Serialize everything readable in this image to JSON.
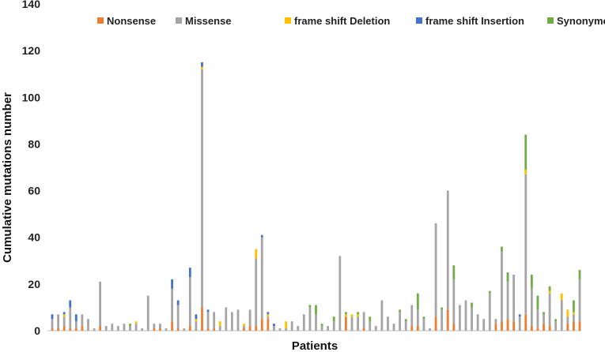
{
  "chart_data": {
    "type": "bar",
    "stacked": true,
    "title": "",
    "xlabel": "Patients",
    "ylabel": "Cumulative mutations number",
    "ylim": [
      0,
      140
    ],
    "yticks": [
      0,
      20,
      40,
      60,
      80,
      100,
      120,
      140
    ],
    "grid": false,
    "legend_position": "top",
    "series": [
      {
        "name": "Nonsense",
        "color": "#ED7D31",
        "values": [
          1,
          1,
          2,
          1,
          1,
          2,
          0,
          0,
          2,
          0,
          0,
          0,
          0,
          0,
          0,
          0,
          0,
          1,
          1,
          0,
          4,
          1,
          0,
          2,
          0,
          10,
          1,
          1,
          0,
          0,
          0,
          0,
          1,
          2,
          2,
          5,
          5,
          0,
          0,
          0,
          0,
          0,
          0,
          0,
          0,
          0,
          0,
          0,
          0,
          6,
          0,
          0,
          1,
          0,
          0,
          0,
          0,
          0,
          0,
          0,
          2,
          2,
          0,
          0,
          6,
          0,
          9,
          3,
          0,
          0,
          0,
          0,
          0,
          0,
          3,
          4,
          5,
          4,
          0,
          7,
          2,
          1,
          3,
          2,
          0,
          0,
          3,
          4,
          4
        ]
      },
      {
        "name": "Missense",
        "color": "#A5A5A5",
        "values": [
          4,
          6,
          4,
          9,
          3,
          5,
          5,
          1,
          19,
          2,
          3,
          2,
          3,
          2,
          3,
          1,
          15,
          2,
          2,
          1,
          14,
          10,
          1,
          21,
          4,
          102,
          7,
          7,
          2,
          10,
          8,
          9,
          1,
          7,
          29,
          35,
          1,
          2,
          1,
          1,
          4,
          2,
          7,
          10,
          7,
          2,
          2,
          4,
          32,
          0,
          6,
          6,
          7,
          4,
          2,
          13,
          6,
          3,
          8,
          4,
          9,
          7,
          5,
          1,
          40,
          9,
          51,
          19,
          11,
          13,
          10,
          7,
          5,
          16,
          2,
          30,
          16,
          20,
          6,
          60,
          16,
          8,
          4,
          14,
          4,
          13,
          3,
          3,
          18
        ]
      },
      {
        "name": "frame shift Deletion",
        "color": "#FFC000",
        "values": [
          0,
          0,
          1,
          0,
          0,
          0,
          0,
          0,
          0,
          0,
          0,
          0,
          0,
          0,
          1,
          0,
          0,
          0,
          0,
          0,
          0,
          0,
          0,
          0,
          1,
          1,
          0,
          0,
          2,
          0,
          0,
          0,
          1,
          0,
          4,
          0,
          1,
          0,
          0,
          3,
          0,
          0,
          0,
          0,
          0,
          0,
          0,
          0,
          0,
          1,
          1,
          1,
          0,
          0,
          0,
          0,
          0,
          0,
          0,
          0,
          0,
          0,
          0,
          0,
          0,
          0,
          0,
          0,
          0,
          0,
          0,
          0,
          0,
          0,
          0,
          0,
          0,
          0,
          0,
          2,
          0,
          0,
          0,
          1,
          0,
          3,
          3,
          1,
          0
        ]
      },
      {
        "name": "frame shift Insertion",
        "color": "#4472C4",
        "values": [
          2,
          0,
          1,
          3,
          3,
          0,
          0,
          0,
          0,
          0,
          0,
          0,
          0,
          0,
          0,
          0,
          0,
          0,
          0,
          0,
          4,
          2,
          0,
          4,
          2,
          2,
          1,
          0,
          0,
          0,
          0,
          0,
          0,
          0,
          0,
          1,
          1,
          1,
          0,
          0,
          0,
          0,
          0,
          0,
          0,
          0,
          0,
          0,
          0,
          0,
          0,
          0,
          0,
          0,
          0,
          0,
          0,
          0,
          0,
          0,
          0,
          0,
          0,
          0,
          0,
          0,
          0,
          0,
          0,
          0,
          0,
          0,
          0,
          0,
          0,
          0,
          0,
          0,
          1,
          0,
          0,
          0,
          0,
          0,
          0,
          0,
          0,
          0,
          0
        ]
      },
      {
        "name": "Synonymous",
        "color": "#70AD47",
        "values": [
          0,
          0,
          0,
          0,
          0,
          0,
          0,
          0,
          0,
          0,
          0,
          0,
          0,
          1,
          0,
          0,
          0,
          0,
          0,
          0,
          0,
          0,
          0,
          0,
          0,
          0,
          0,
          0,
          0,
          0,
          0,
          0,
          0,
          0,
          0,
          0,
          0,
          0,
          0,
          0,
          0,
          0,
          0,
          1,
          4,
          1,
          0,
          2,
          0,
          1,
          0,
          1,
          0,
          2,
          0,
          0,
          0,
          0,
          1,
          1,
          0,
          7,
          1,
          0,
          0,
          1,
          0,
          6,
          0,
          0,
          2,
          0,
          0,
          1,
          0,
          2,
          4,
          0,
          0,
          15,
          6,
          6,
          1,
          2,
          1,
          0,
          0,
          5,
          4
        ]
      }
    ]
  }
}
